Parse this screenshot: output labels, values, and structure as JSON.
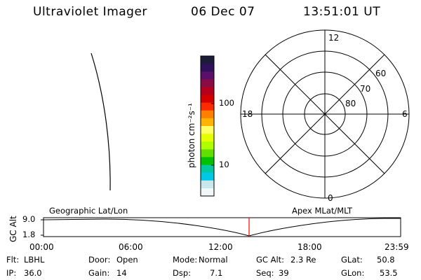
{
  "header": {
    "instrument": "Ultraviolet Imager",
    "date": "06 Dec 07",
    "time": "13:51:01 UT"
  },
  "colorbar": {
    "unit_label": "photon cm⁻²s⁻¹",
    "ticks": [
      "100",
      "10"
    ],
    "colors": [
      "#1b1b3a",
      "#30105a",
      "#5a0f6a",
      "#8a0c44",
      "#b4001e",
      "#d40000",
      "#ff2a00",
      "#ff8000",
      "#ffb300",
      "#ffff66",
      "#e6ff00",
      "#b0ff00",
      "#60e000",
      "#00c000",
      "#00c8a0",
      "#00c8e6",
      "#c8e8ec",
      "#f0f8f8"
    ]
  },
  "polar": {
    "labels": {
      "top": "12",
      "bottom": "0",
      "left": "18",
      "right": "6"
    },
    "circle_labels": [
      "60",
      "70",
      "80"
    ]
  },
  "timeline": {
    "y_axis_label": "GC Alt",
    "y_ticks": [
      "9.0",
      "1.8"
    ],
    "left_label": "Geographic Lat/Lon",
    "right_label": "Apex MLat/MLT",
    "x_ticks": [
      "00:00",
      "06:00",
      "12:00",
      "18:00",
      "23:59"
    ],
    "current_marker_color": "#ff0000"
  },
  "status": {
    "row1": [
      {
        "key": "Flt:",
        "value": "LBHL"
      },
      {
        "key": "Door:",
        "value": "Open"
      },
      {
        "key": "Mode:",
        "value": "Normal"
      },
      {
        "key": "GC Alt:",
        "value": "2.3 Re"
      },
      {
        "key": "GLat:",
        "value": "50.8"
      }
    ],
    "row2": [
      {
        "key": "IP:",
        "value": "36.0"
      },
      {
        "key": "Gain:",
        "value": "14"
      },
      {
        "key": "Dsp:",
        "value": "7.1"
      },
      {
        "key": "Seq:",
        "value": "39"
      },
      {
        "key": "GLon:",
        "value": "53.5"
      }
    ]
  }
}
